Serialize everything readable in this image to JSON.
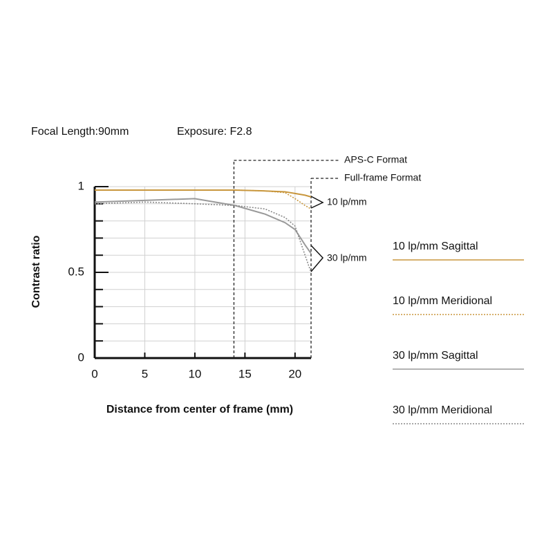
{
  "chart_data": {
    "type": "line",
    "header": [
      "Focal Length:90mm",
      "Exposure: F2.8"
    ],
    "ylabel": "Contrast ratio",
    "xlabel": "Distance from center of frame (mm)",
    "x": [
      0,
      5,
      10,
      14,
      17,
      19,
      20,
      21,
      21.6
    ],
    "series": [
      {
        "name": "10 lp/mm Sagittal",
        "color": "#c8963c",
        "dash": false,
        "values": [
          0.98,
          0.98,
          0.98,
          0.98,
          0.975,
          0.97,
          0.96,
          0.95,
          0.94
        ]
      },
      {
        "name": "10 lp/mm Meridional",
        "color": "#c8963c",
        "dash": true,
        "values": [
          0.98,
          0.98,
          0.98,
          0.98,
          0.975,
          0.965,
          0.93,
          0.89,
          0.87
        ]
      },
      {
        "name": "30 lp/mm Sagittal",
        "color": "#999999",
        "dash": false,
        "values": [
          0.91,
          0.92,
          0.93,
          0.89,
          0.84,
          0.79,
          0.75,
          0.66,
          0.61
        ]
      },
      {
        "name": "30 lp/mm Meridional",
        "color": "#888888",
        "dash": true,
        "values": [
          0.9,
          0.91,
          0.9,
          0.89,
          0.87,
          0.82,
          0.77,
          0.6,
          0.5
        ]
      }
    ],
    "group_labels": [
      "10 lp/mm",
      "30 lp/mm"
    ],
    "format_lines": [
      {
        "label": "APS-C Format",
        "x": 13.9
      },
      {
        "label": "Full-frame Format",
        "x": 21.6
      }
    ],
    "xlim": [
      0,
      21.6
    ],
    "ylim": [
      0,
      1
    ],
    "xticks": [
      0,
      5,
      10,
      15,
      20
    ],
    "yticks": [
      0,
      0.5,
      1
    ],
    "ygrid": [
      0.1,
      0.2,
      0.3,
      0.4,
      0.5,
      0.6,
      0.7,
      0.8,
      0.9,
      1
    ],
    "grid": true
  }
}
